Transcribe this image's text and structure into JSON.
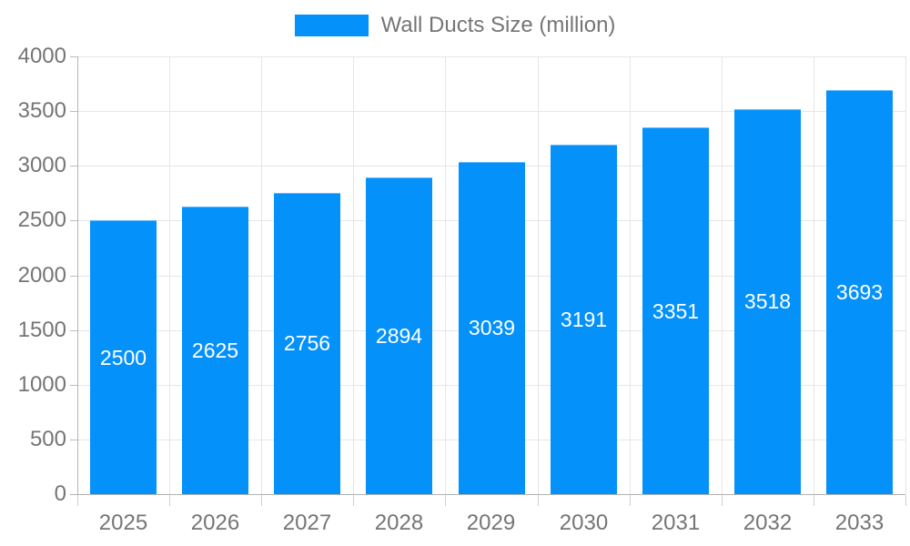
{
  "chart_data": {
    "type": "bar",
    "title": "Wall Ducts Size (million)",
    "legend": {
      "label": "Wall Ducts Size (million)",
      "position": "top"
    },
    "categories": [
      "2025",
      "2026",
      "2027",
      "2028",
      "2029",
      "2030",
      "2031",
      "2032",
      "2033"
    ],
    "series": [
      {
        "name": "Wall Ducts Size (million)",
        "values": [
          2500,
          2625,
          2756,
          2894,
          3039,
          3191,
          3351,
          3518,
          3693
        ]
      }
    ],
    "bar_value_labels": [
      "2500",
      "2625",
      "2756",
      "2894",
      "3039",
      "3191",
      "3351",
      "3518",
      "3693"
    ],
    "xlabel": "",
    "ylabel": "",
    "ylim": [
      0,
      4000
    ],
    "ytick_step": 500,
    "yticks": [
      0,
      500,
      1000,
      1500,
      2000,
      2500,
      3000,
      3500,
      4000
    ],
    "grid": true,
    "colors": {
      "bar": "#0591fa",
      "gridline": "#e6e6e6",
      "axis_line": "#b3b3b3",
      "axis_text": "#757575",
      "bar_label_text": "#ffffff",
      "background": "#ffffff"
    }
  }
}
